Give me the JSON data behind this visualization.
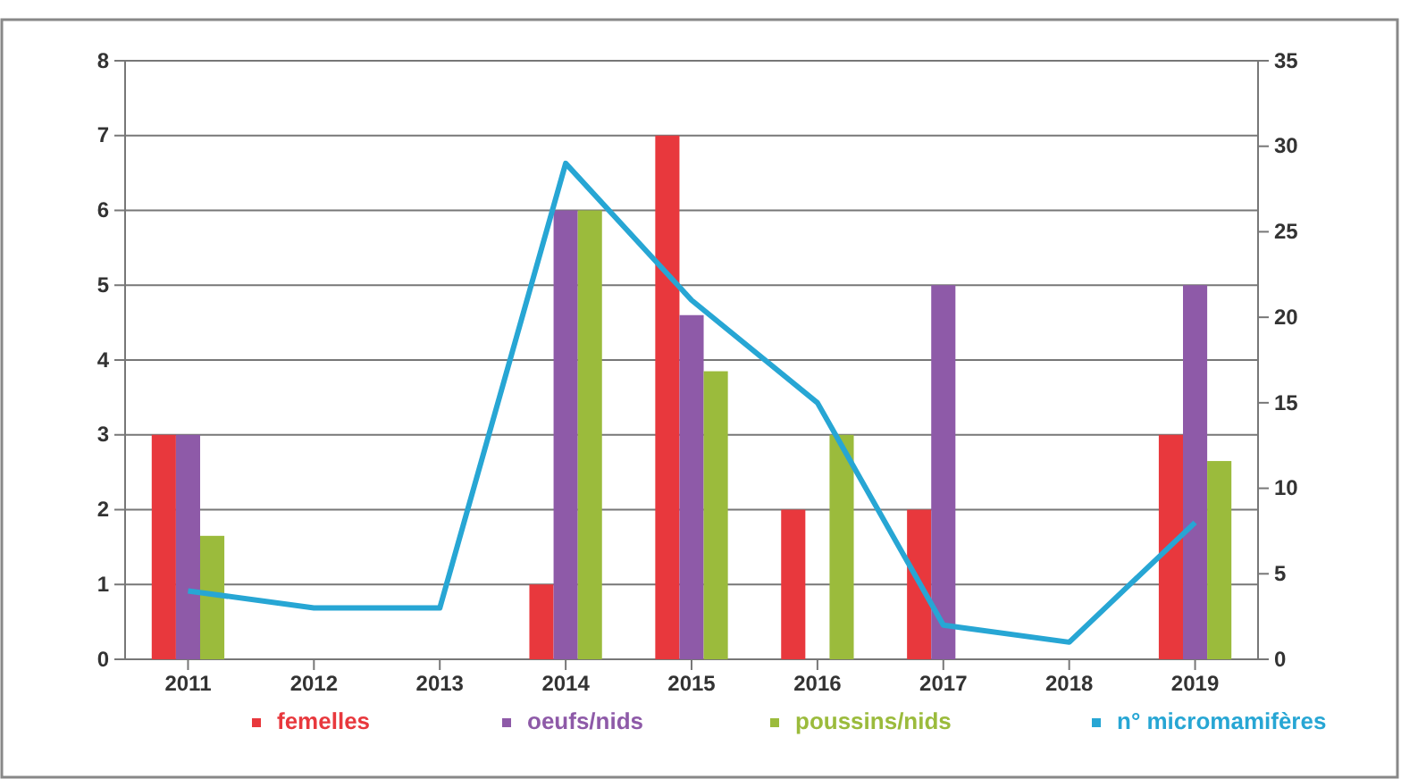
{
  "chart_data": {
    "type": "bar",
    "categories": [
      "2011",
      "2012",
      "2013",
      "2014",
      "2015",
      "2016",
      "2017",
      "2018",
      "2019"
    ],
    "series": [
      {
        "name": "femelles",
        "color": "#e8383d",
        "values": [
          3,
          0,
          0,
          1,
          7,
          2,
          2,
          0,
          3
        ]
      },
      {
        "name": "oeufs/nids",
        "color": "#8e5aa8",
        "values": [
          3,
          0,
          0,
          6,
          4.6,
          0,
          5,
          0,
          5
        ]
      },
      {
        "name": "poussins/nids",
        "color": "#9bbb3c",
        "values": [
          1.65,
          0,
          0,
          6,
          3.85,
          3,
          0,
          0,
          2.65
        ]
      },
      {
        "name": "n° micromamifères",
        "color": "#27a6d4",
        "type": "line",
        "axis": "y2",
        "values": [
          4,
          3,
          3,
          29,
          21,
          15,
          2,
          1,
          8
        ]
      }
    ],
    "ylim": [
      0,
      8
    ],
    "yticks": [
      0,
      1,
      2,
      3,
      4,
      5,
      6,
      7,
      8
    ],
    "y2lim": [
      0,
      35
    ],
    "y2ticks": [
      0,
      5,
      10,
      15,
      20,
      25,
      30,
      35
    ],
    "grid": "y",
    "legend": "bottom",
    "marker": "none"
  }
}
